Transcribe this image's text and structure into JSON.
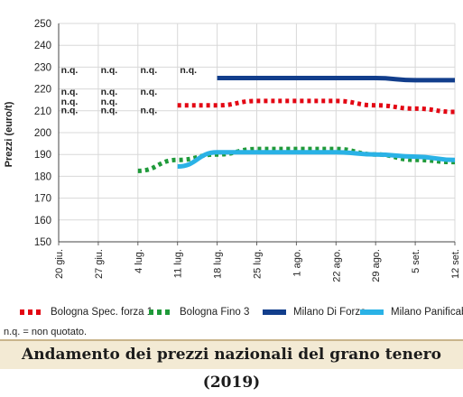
{
  "chart_data": {
    "type": "line",
    "title": "Andamento dei prezzi nazionali del grano tenero (2019)",
    "ylabel": "Prezzi (euro/t)",
    "xlabel": "",
    "ylim": [
      150,
      250
    ],
    "yticks": [
      150,
      160,
      170,
      180,
      190,
      200,
      210,
      220,
      230,
      240,
      250
    ],
    "categories": [
      "20 giu.",
      "27 giu.",
      "4 lug.",
      "11 lug.",
      "18 lug.",
      "25 lug.",
      "1 ago.",
      "22 ago.",
      "29 ago.",
      "5 set.",
      "12 set."
    ],
    "grid": true,
    "legend_position": "bottom",
    "series": [
      {
        "name": "Bologna Spec. forza 1",
        "color": "#e30613",
        "style": "dotted",
        "values": [
          null,
          null,
          null,
          212.5,
          212.5,
          214.5,
          214.5,
          214.5,
          212.5,
          211,
          209.5
        ]
      },
      {
        "name": "Bologna Fino 3",
        "color": "#1f9a3a",
        "style": "dotted",
        "values": [
          null,
          null,
          182.5,
          187.5,
          190,
          192.5,
          192.5,
          192.5,
          190,
          187.5,
          186.5
        ]
      },
      {
        "name": "Milano Di Forza",
        "color": "#123e8c",
        "style": "solid",
        "values": [
          null,
          null,
          null,
          null,
          225,
          225,
          225,
          225,
          225,
          224,
          224
        ]
      },
      {
        "name": "Milano Panificabile",
        "color": "#2ab2e6",
        "style": "solid",
        "values": [
          null,
          null,
          null,
          184.5,
          191,
          191,
          191,
          191,
          190,
          189,
          187.5
        ]
      }
    ],
    "annotations": {
      "rows": [
        {
          "y": 229,
          "labels": [
            "n.q.",
            "n.q.",
            "n.q.",
            "n.q."
          ],
          "start": 0
        },
        {
          "y": 219,
          "labels": [
            "n.q.",
            "n.q.",
            "n.q."
          ],
          "start": 0
        },
        {
          "y": 214.5,
          "labels": [
            "n.q.",
            "n.q."
          ],
          "start": 0
        },
        {
          "y": 210.5,
          "labels": [
            "n.q.",
            "n.q.",
            "n.q."
          ],
          "start": 0
        }
      ]
    },
    "footnote": "n.q. = non quotato."
  }
}
